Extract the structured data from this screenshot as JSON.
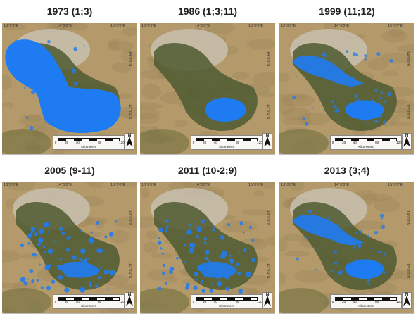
{
  "panels": [
    {
      "title": "1973 (1;3)",
      "water": "full"
    },
    {
      "title": "1986 (1;3;11)",
      "water": "south"
    },
    {
      "title": "1999 (11;12)",
      "water": "north_partial"
    },
    {
      "title": "2005 (9-11)",
      "water": "scattered"
    },
    {
      "title": "2011 (10-2;9)",
      "water": "scattered"
    },
    {
      "title": "2013 (3;4)",
      "water": "north_partial"
    }
  ],
  "coordinates": {
    "lon": [
      "13°0'0\"E",
      "14°0'0\"E",
      "15°0'0\"E"
    ],
    "lat": [
      "14°0'0\"N",
      "13°0'0\"N"
    ]
  },
  "scale": {
    "ticks": [
      "0",
      "20",
      "40",
      "80",
      "120"
    ],
    "unit": "Kilometers"
  },
  "north_label": "N",
  "colors": {
    "land": "#b49a6b",
    "vegetation": "#4f5a30",
    "water": "#1f7bf2",
    "haze": "#c9c3b4"
  }
}
